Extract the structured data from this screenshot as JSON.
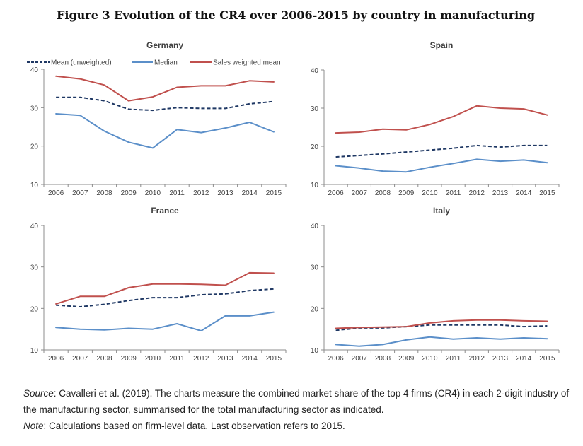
{
  "figure": {
    "title": "Figure 3 Evolution of the CR4 over 2006-2015 by country in manufacturing"
  },
  "colors": {
    "Mean (unweighted)": "#1f3864",
    "Median": "#5b8fc9",
    "Sales weighted mean": "#c0504d",
    "axis": "#8c8c8c",
    "text": "#404040"
  },
  "legend": {
    "position": "top",
    "entries": [
      "Mean (unweighted)",
      "Median",
      "Sales weighted mean"
    ]
  },
  "chart_data": [
    {
      "type": "line",
      "title": "Germany",
      "x": [
        "2006",
        "2007",
        "2008",
        "2009",
        "2010",
        "2011",
        "2012",
        "2013",
        "2014",
        "2015"
      ],
      "ylim": [
        10,
        40
      ],
      "yticks": [
        10,
        20,
        30,
        40
      ],
      "series": [
        {
          "name": "Mean (unweighted)",
          "style": "dashed",
          "values": [
            32.7,
            32.7,
            31.8,
            29.6,
            29.3,
            30.0,
            29.8,
            29.8,
            31.0,
            31.6
          ]
        },
        {
          "name": "Median",
          "style": "solid",
          "values": [
            28.4,
            28.0,
            23.9,
            21.0,
            19.5,
            24.3,
            23.5,
            24.7,
            26.2,
            23.7
          ]
        },
        {
          "name": "Sales weighted mean",
          "style": "solid",
          "values": [
            38.2,
            37.5,
            35.9,
            31.8,
            32.8,
            35.3,
            35.7,
            35.7,
            37.0,
            36.7
          ]
        }
      ]
    },
    {
      "type": "line",
      "title": "Spain",
      "x": [
        "2006",
        "2007",
        "2008",
        "2009",
        "2010",
        "2011",
        "2012",
        "2013",
        "2014",
        "2015"
      ],
      "ylim": [
        10,
        40
      ],
      "yticks": [
        10,
        20,
        30,
        40
      ],
      "series": [
        {
          "name": "Mean (unweighted)",
          "style": "dashed",
          "values": [
            17.2,
            17.6,
            18.0,
            18.5,
            19.0,
            19.5,
            20.2,
            19.8,
            20.2,
            20.2
          ]
        },
        {
          "name": "Median",
          "style": "solid",
          "values": [
            14.9,
            14.3,
            13.5,
            13.3,
            14.5,
            15.5,
            16.6,
            16.1,
            16.4,
            15.7
          ]
        },
        {
          "name": "Sales weighted mean",
          "style": "solid",
          "values": [
            23.5,
            23.7,
            24.5,
            24.3,
            25.7,
            27.8,
            30.6,
            30.0,
            29.8,
            28.2
          ]
        }
      ]
    },
    {
      "type": "line",
      "title": "France",
      "x": [
        "2006",
        "2007",
        "2008",
        "2009",
        "2010",
        "2011",
        "2012",
        "2013",
        "2014",
        "2015"
      ],
      "ylim": [
        10,
        40
      ],
      "yticks": [
        10,
        20,
        30,
        40
      ],
      "series": [
        {
          "name": "Mean (unweighted)",
          "style": "dashed",
          "values": [
            20.8,
            20.4,
            21.0,
            21.9,
            22.6,
            22.6,
            23.3,
            23.5,
            24.3,
            24.7
          ]
        },
        {
          "name": "Median",
          "style": "solid",
          "values": [
            15.4,
            15.0,
            14.8,
            15.2,
            15.0,
            16.3,
            14.6,
            18.2,
            18.2,
            19.1
          ]
        },
        {
          "name": "Sales weighted mean",
          "style": "solid",
          "values": [
            21.1,
            22.9,
            22.9,
            25.0,
            25.9,
            25.9,
            25.8,
            25.6,
            28.6,
            28.5
          ]
        }
      ]
    },
    {
      "type": "line",
      "title": "Italy",
      "x": [
        "2006",
        "2007",
        "2008",
        "2009",
        "2010",
        "2011",
        "2012",
        "2013",
        "2014",
        "2015"
      ],
      "ylim": [
        10,
        40
      ],
      "yticks": [
        10,
        20,
        30,
        40
      ],
      "series": [
        {
          "name": "Mean (unweighted)",
          "style": "dashed",
          "values": [
            14.7,
            15.3,
            15.3,
            15.6,
            16.0,
            16.0,
            16.0,
            16.0,
            15.6,
            15.8
          ]
        },
        {
          "name": "Median",
          "style": "solid",
          "values": [
            11.3,
            10.9,
            11.3,
            12.4,
            13.1,
            12.6,
            12.9,
            12.6,
            12.9,
            12.7
          ]
        },
        {
          "name": "Sales weighted mean",
          "style": "solid",
          "values": [
            15.2,
            15.4,
            15.5,
            15.6,
            16.5,
            17.0,
            17.2,
            17.2,
            17.0,
            16.9
          ]
        }
      ]
    }
  ],
  "caption": {
    "source_label": "Source",
    "source_text": ": Cavalleri et al. (2019). The charts measure the combined market share of the top 4 firms (CR4) in each 2-digit industry of the manufacturing sector, summarised for the total manufacturing sector as indicated.",
    "note_label": "Note",
    "note_text": ": Calculations based on firm-level data. Last observation refers to 2015."
  }
}
